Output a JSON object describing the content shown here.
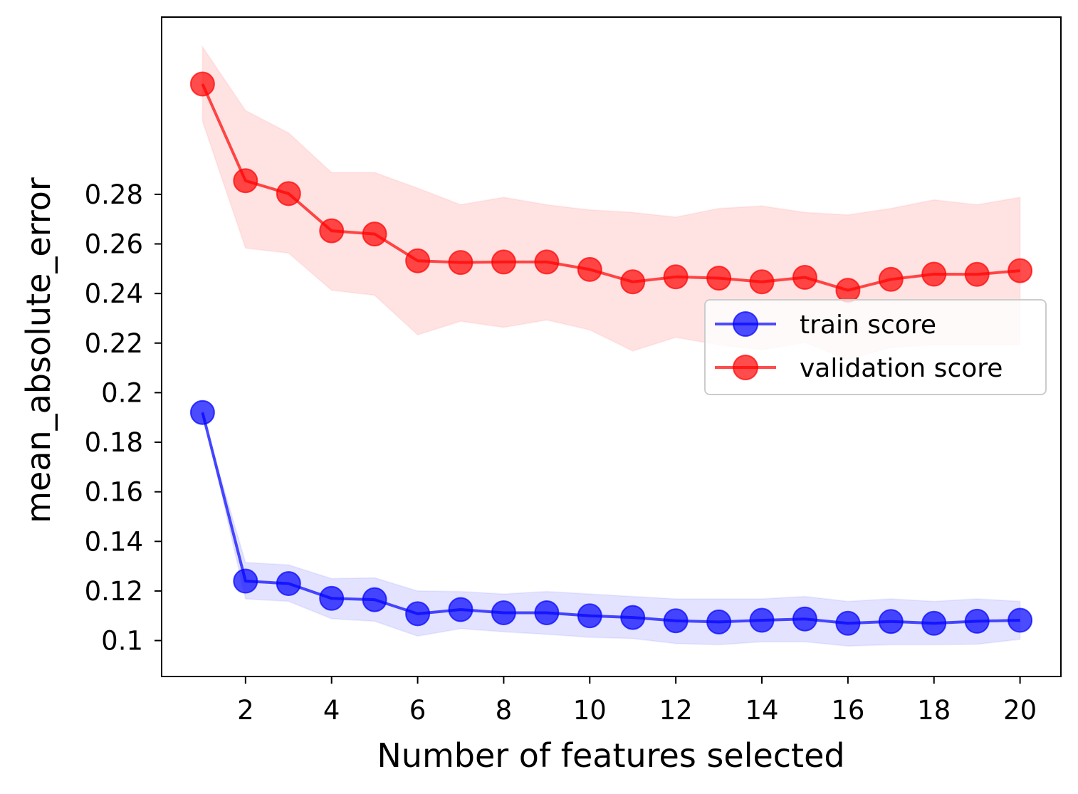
{
  "chart_data": {
    "type": "line",
    "xlabel": "Number of features selected",
    "ylabel": "mean_absolute_error",
    "xlim": [
      0.05,
      20.95
    ],
    "ylim": [
      0.0855,
      0.3515
    ],
    "x_ticks": [
      2,
      4,
      6,
      8,
      10,
      12,
      14,
      16,
      18,
      20
    ],
    "x_tick_labels": [
      "2",
      "4",
      "6",
      "8",
      "10",
      "12",
      "14",
      "16",
      "18",
      "20"
    ],
    "y_ticks": [
      0.1,
      0.12,
      0.14,
      0.16,
      0.18,
      0.2,
      0.22,
      0.24,
      0.26,
      0.28
    ],
    "y_tick_labels": [
      "0.1",
      "0.12",
      "0.14",
      "0.16",
      "0.18",
      "0.2",
      "0.22",
      "0.24",
      "0.26",
      "0.28"
    ],
    "grid": false,
    "legend_position": "center-right",
    "x": [
      1,
      2,
      3,
      4,
      5,
      6,
      7,
      8,
      9,
      10,
      11,
      12,
      13,
      14,
      15,
      16,
      17,
      18,
      19,
      20
    ],
    "series": [
      {
        "name": "train score",
        "color": "#0000ff",
        "values": [
          0.192,
          0.124,
          0.123,
          0.117,
          0.1165,
          0.1108,
          0.1125,
          0.1112,
          0.1112,
          0.11,
          0.1093,
          0.108,
          0.1075,
          0.1082,
          0.1087,
          0.107,
          0.1077,
          0.107,
          0.1078,
          0.1082
        ],
        "band_upper": [
          0.191,
          0.1315,
          0.1305,
          0.125,
          0.1253,
          0.12,
          0.1198,
          0.1188,
          0.1198,
          0.1188,
          0.1178,
          0.1168,
          0.1168,
          0.1168,
          0.1178,
          0.1158,
          0.1168,
          0.1158,
          0.1168,
          0.1158
        ],
        "band_lower": [
          0.193,
          0.1168,
          0.1158,
          0.1088,
          0.1078,
          0.1018,
          0.1048,
          0.1035,
          0.1025,
          0.1013,
          0.1008,
          0.0988,
          0.0983,
          0.0995,
          0.0995,
          0.0978,
          0.0983,
          0.0983,
          0.0985,
          0.1005
        ]
      },
      {
        "name": "validation score",
        "color": "#ff0000",
        "values": [
          0.3245,
          0.2855,
          0.2803,
          0.2653,
          0.264,
          0.2532,
          0.2525,
          0.2527,
          0.2527,
          0.2497,
          0.2447,
          0.2467,
          0.2462,
          0.2447,
          0.2465,
          0.2413,
          0.2457,
          0.2478,
          0.2477,
          0.2492
        ],
        "band_upper": [
          0.3395,
          0.3138,
          0.3048,
          0.2888,
          0.2888,
          0.2825,
          0.2758,
          0.2788,
          0.2758,
          0.2737,
          0.2727,
          0.2708,
          0.2743,
          0.2753,
          0.2727,
          0.2717,
          0.2743,
          0.2778,
          0.2758,
          0.2788
        ],
        "band_lower": [
          0.3095,
          0.2583,
          0.2563,
          0.2413,
          0.2393,
          0.2233,
          0.2288,
          0.2263,
          0.2293,
          0.2253,
          0.2168,
          0.2223,
          0.2193,
          0.2173,
          0.2203,
          0.2133,
          0.2183,
          0.2193,
          0.2193,
          0.2193
        ]
      }
    ]
  }
}
